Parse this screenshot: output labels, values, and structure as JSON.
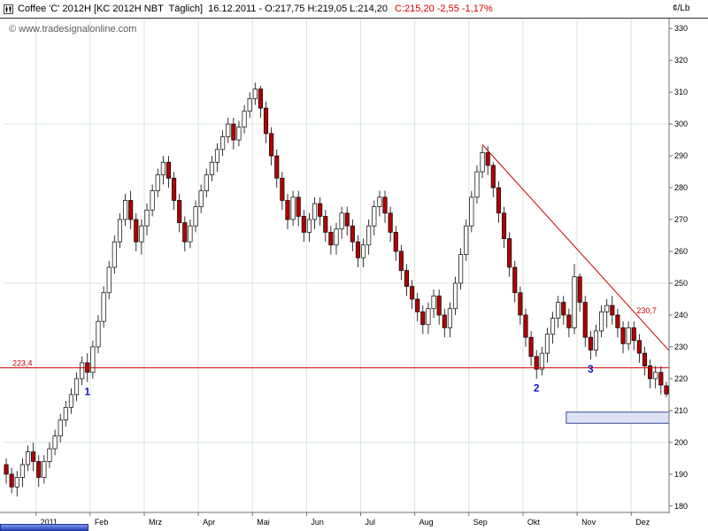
{
  "header": {
    "title": "Coffee 'C' 2012H [KC 2012H NBT  Täglich]  16.12.2011 - O:217,75 H:219,05 L:214,20 ",
    "quote_red": "C:215,20 -2,55 -1,17%"
  },
  "watermark": "© www.tradesignalonline.com",
  "unit_label": "¢/Lb",
  "chart_data": {
    "type": "candlestick",
    "title": "Coffee 'C' 2012H [KC 2012H NBT Täglich]",
    "interval": "Täglich",
    "last_quote": {
      "date": "16.12.2011",
      "open": 217.75,
      "high": 219.05,
      "low": 214.2,
      "close": 215.2,
      "change": "-2,55",
      "change_pct": "-1,17%"
    },
    "ylim": [
      178,
      332
    ],
    "y_ticks": [
      180,
      190,
      200,
      210,
      220,
      230,
      240,
      250,
      260,
      270,
      280,
      290,
      300,
      310,
      320,
      330
    ],
    "grid_h": [
      200,
      250,
      300
    ],
    "x_labels": [
      "2011",
      "Feb",
      "Mrz",
      "Apr",
      "Mai",
      "Jun",
      "Jul",
      "Aug",
      "Sep",
      "Okt",
      "Nov",
      "Dez"
    ],
    "x_label_indices": [
      6,
      16,
      26,
      36,
      46,
      56,
      66,
      76,
      86,
      96,
      106,
      116
    ],
    "ohlc_order": "open,high,low,close",
    "candles_ohlc": [
      [
        193,
        195,
        187,
        190
      ],
      [
        190,
        192,
        184,
        186
      ],
      [
        186,
        191,
        183,
        189
      ],
      [
        189,
        195,
        186,
        193
      ],
      [
        193,
        199,
        191,
        197
      ],
      [
        197,
        200,
        191,
        194
      ],
      [
        194,
        196,
        186,
        189
      ],
      [
        189,
        196,
        187,
        194
      ],
      [
        194,
        200,
        192,
        198
      ],
      [
        198,
        204,
        196,
        202
      ],
      [
        202,
        209,
        200,
        207
      ],
      [
        207,
        213,
        205,
        211
      ],
      [
        211,
        217,
        209,
        215
      ],
      [
        215,
        222,
        213,
        220
      ],
      [
        220,
        227,
        218,
        225
      ],
      [
        225,
        228,
        219,
        222
      ],
      [
        222,
        232,
        220,
        230
      ],
      [
        230,
        240,
        228,
        238
      ],
      [
        238,
        249,
        236,
        247
      ],
      [
        247,
        257,
        245,
        255
      ],
      [
        255,
        265,
        253,
        263
      ],
      [
        263,
        272,
        261,
        270
      ],
      [
        270,
        278,
        268,
        276
      ],
      [
        276,
        279,
        267,
        270
      ],
      [
        270,
        272,
        260,
        263
      ],
      [
        263,
        270,
        259,
        268
      ],
      [
        268,
        275,
        265,
        273
      ],
      [
        273,
        281,
        271,
        279
      ],
      [
        279,
        286,
        277,
        284
      ],
      [
        284,
        290,
        281,
        288
      ],
      [
        288,
        290,
        280,
        283
      ],
      [
        283,
        285,
        273,
        276
      ],
      [
        276,
        278,
        266,
        269
      ],
      [
        269,
        271,
        260,
        263
      ],
      [
        263,
        270,
        261,
        268
      ],
      [
        268,
        276,
        266,
        274
      ],
      [
        274,
        281,
        272,
        279
      ],
      [
        279,
        286,
        277,
        284
      ],
      [
        284,
        290,
        282,
        288
      ],
      [
        288,
        294,
        285,
        292
      ],
      [
        292,
        298,
        290,
        296
      ],
      [
        296,
        302,
        294,
        300
      ],
      [
        300,
        302,
        292,
        295
      ],
      [
        295,
        301,
        293,
        299
      ],
      [
        299,
        306,
        297,
        304
      ],
      [
        304,
        310,
        302,
        308
      ],
      [
        308,
        313,
        306,
        311
      ],
      [
        311,
        312,
        302,
        305
      ],
      [
        305,
        307,
        294,
        297
      ],
      [
        297,
        299,
        287,
        290
      ],
      [
        290,
        292,
        280,
        283
      ],
      [
        283,
        285,
        273,
        276
      ],
      [
        276,
        278,
        267,
        270
      ],
      [
        270,
        279,
        268,
        277
      ],
      [
        277,
        279,
        268,
        271
      ],
      [
        271,
        273,
        263,
        266
      ],
      [
        266,
        272,
        263,
        270
      ],
      [
        270,
        277,
        267,
        275
      ],
      [
        275,
        277,
        268,
        271
      ],
      [
        271,
        273,
        263,
        266
      ],
      [
        266,
        268,
        259,
        262
      ],
      [
        262,
        269,
        259,
        267
      ],
      [
        267,
        274,
        264,
        272
      ],
      [
        272,
        274,
        265,
        268
      ],
      [
        268,
        270,
        260,
        263
      ],
      [
        263,
        265,
        255,
        258
      ],
      [
        258,
        264,
        255,
        262
      ],
      [
        262,
        270,
        259,
        268
      ],
      [
        268,
        276,
        265,
        274
      ],
      [
        274,
        279,
        271,
        277
      ],
      [
        277,
        279,
        269,
        272
      ],
      [
        272,
        274,
        263,
        266
      ],
      [
        266,
        268,
        257,
        260
      ],
      [
        260,
        262,
        251,
        254
      ],
      [
        254,
        256,
        246,
        249
      ],
      [
        249,
        251,
        242,
        245
      ],
      [
        245,
        247,
        238,
        241
      ],
      [
        241,
        243,
        234,
        237
      ],
      [
        237,
        244,
        234,
        242
      ],
      [
        242,
        248,
        239,
        246
      ],
      [
        246,
        248,
        237,
        240
      ],
      [
        240,
        242,
        233,
        236
      ],
      [
        236,
        244,
        233,
        242
      ],
      [
        242,
        252,
        240,
        250
      ],
      [
        250,
        261,
        248,
        259
      ],
      [
        259,
        270,
        257,
        268
      ],
      [
        268,
        279,
        266,
        277
      ],
      [
        277,
        287,
        275,
        285
      ],
      [
        285,
        293,
        283,
        291
      ],
      [
        291,
        293,
        284,
        287
      ],
      [
        287,
        288,
        277,
        280
      ],
      [
        280,
        282,
        269,
        272
      ],
      [
        272,
        274,
        261,
        264
      ],
      [
        264,
        266,
        252,
        255
      ],
      [
        255,
        257,
        244,
        247
      ],
      [
        247,
        249,
        237,
        240
      ],
      [
        240,
        242,
        230,
        233
      ],
      [
        233,
        235,
        224,
        227
      ],
      [
        227,
        229,
        220,
        223
      ],
      [
        223,
        230,
        221,
        228
      ],
      [
        228,
        236,
        225,
        234
      ],
      [
        234,
        241,
        231,
        239
      ],
      [
        239,
        246,
        236,
        244
      ],
      [
        244,
        246,
        237,
        240
      ],
      [
        240,
        242,
        233,
        236
      ],
      [
        236,
        256,
        234,
        252
      ],
      [
        252,
        253,
        241,
        244
      ],
      [
        244,
        246,
        230,
        233
      ],
      [
        233,
        235,
        226,
        229
      ],
      [
        229,
        237,
        227,
        235
      ],
      [
        235,
        243,
        233,
        241
      ],
      [
        241,
        245,
        236,
        243
      ],
      [
        243,
        246,
        237,
        240
      ],
      [
        240,
        242,
        233,
        236
      ],
      [
        236,
        238,
        228,
        231
      ],
      [
        231,
        238,
        229,
        236
      ],
      [
        236,
        238,
        229,
        232
      ],
      [
        232,
        234,
        225,
        228
      ],
      [
        228,
        230,
        221,
        224
      ],
      [
        224,
        226,
        217,
        220
      ],
      [
        220,
        224,
        217,
        222
      ],
      [
        222,
        224,
        215,
        218
      ],
      [
        217.75,
        219.05,
        214.2,
        215.2
      ]
    ],
    "colors": {
      "up": "#ffffff",
      "down": "#b30000",
      "outline": "#000000",
      "grid": "#d7e7d7",
      "axis": "#707070"
    },
    "annotations": {
      "support_line": {
        "price": 223.4,
        "label": "223,4",
        "color": "#cc0000"
      },
      "trend_line": {
        "from_index": 88,
        "from_price": 293.5,
        "to_index": 124,
        "to_price": 226,
        "label": "230,7",
        "label_index": 116.5,
        "label_price": 240.5,
        "color": "#cc0000"
      },
      "target_zone": {
        "from_index": 104,
        "price_top": 209.5,
        "price_bottom": 206,
        "fill": "#dee3f4",
        "stroke": "#394a9e"
      },
      "wave_markers": {
        "color": "#1414cc",
        "items": [
          {
            "label": "1",
            "index": 15,
            "price": 216
          },
          {
            "label": "2",
            "index": 98,
            "price": 217
          },
          {
            "label": "3",
            "index": 108,
            "price": 223
          }
        ]
      }
    }
  }
}
